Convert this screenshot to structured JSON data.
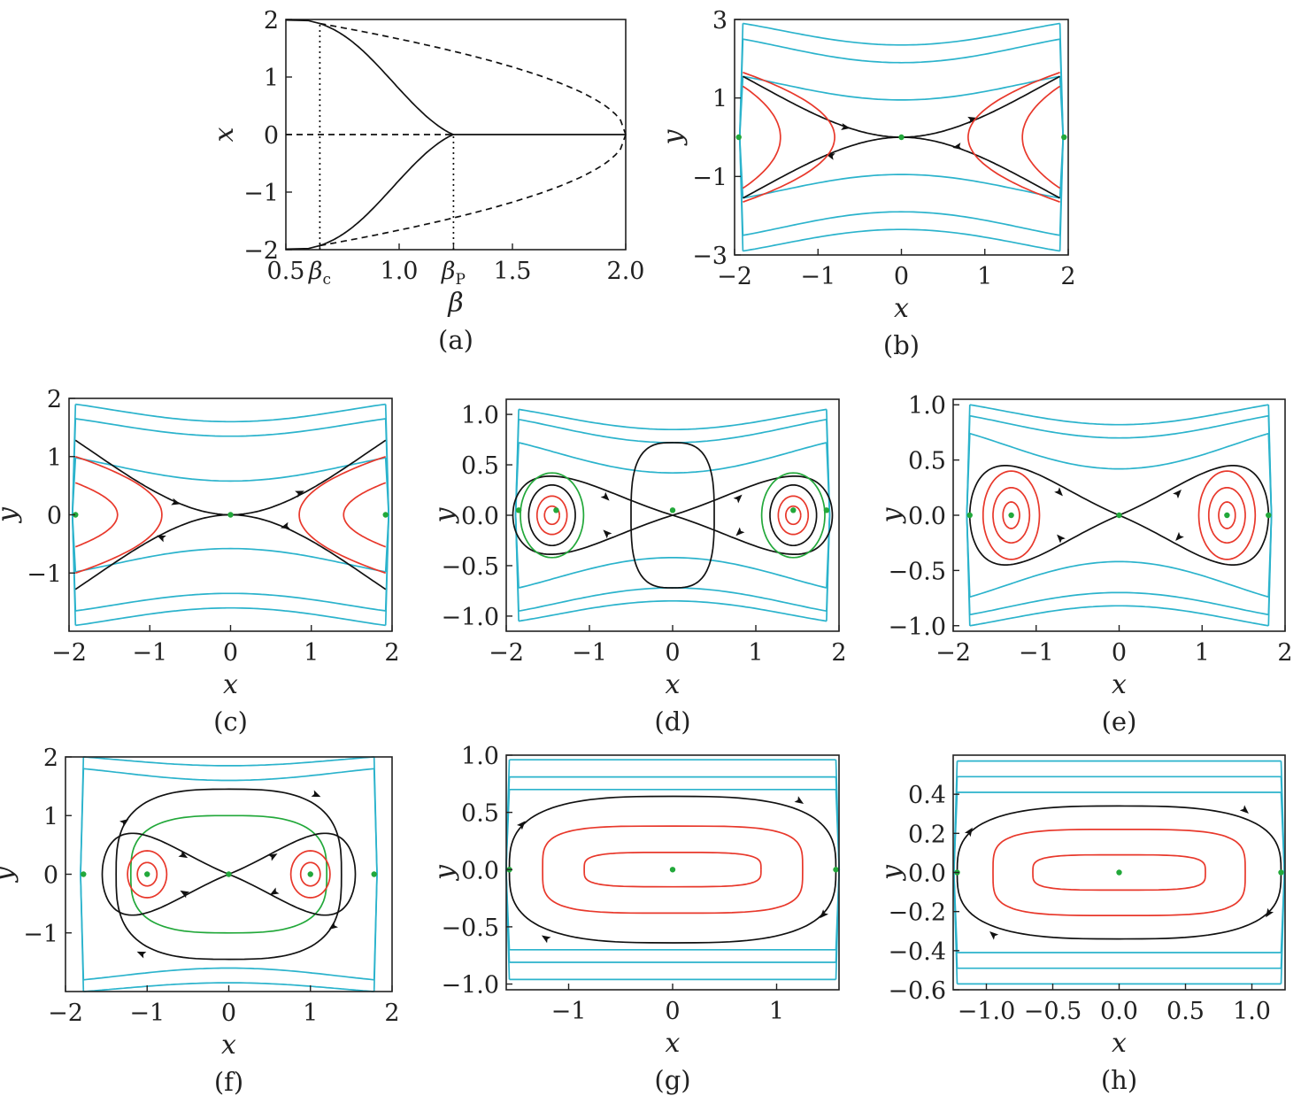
{
  "colors": {
    "separatrix": "#111111",
    "inner_orbit": "#e8382b",
    "outer_orbit": "#2bb3cc",
    "homoclinic": "#22a83a",
    "fixed_point": "#22a83a",
    "axis": "#222222"
  },
  "chart_data": [
    {
      "id": "a",
      "type": "line",
      "caption": "(a)",
      "xlabel": "β",
      "ylabel": "x",
      "xlim": [
        0.5,
        2.0
      ],
      "ylim": [
        -2,
        2
      ],
      "xticks": [
        {
          "v": 0.5,
          "label": "0.5"
        },
        {
          "v": 0.65,
          "label": "βc"
        },
        {
          "v": 1.0,
          "label": "1.0"
        },
        {
          "v": 1.24,
          "label": "βP"
        },
        {
          "v": 1.5,
          "label": "1.5"
        },
        {
          "v": 2.0,
          "label": "2.0"
        }
      ],
      "yticks": [
        {
          "v": 2,
          "label": "2"
        },
        {
          "v": 1,
          "label": "1"
        },
        {
          "v": 0,
          "label": "0"
        },
        {
          "v": -1,
          "label": "−1"
        },
        {
          "v": -2,
          "label": "−2"
        }
      ],
      "beta_c": 0.65,
      "beta_p": 1.24
    },
    {
      "id": "b",
      "type": "line",
      "caption": "(b)",
      "xlabel": "x",
      "ylabel": "y",
      "xlim": [
        -2,
        2
      ],
      "ylim": [
        -3,
        3
      ],
      "w": 1.9,
      "h": 3.0,
      "xticks": [
        {
          "v": -2,
          "label": "−2"
        },
        {
          "v": -1,
          "label": "−1"
        },
        {
          "v": 0,
          "label": "0"
        },
        {
          "v": 1,
          "label": "1"
        },
        {
          "v": 2,
          "label": "2"
        }
      ],
      "yticks": [
        {
          "v": 3,
          "label": "3"
        },
        {
          "v": 1,
          "label": "1"
        },
        {
          "v": -1,
          "label": "−1"
        },
        {
          "v": -3,
          "label": "−3"
        }
      ],
      "curves": [
        {
          "kind": "outer",
          "y0": 0.95,
          "amp": 0.6
        },
        {
          "kind": "outer",
          "y0": 1.9,
          "amp": 0.6
        },
        {
          "kind": "outer",
          "y0": 2.35,
          "amp": 0.55
        },
        {
          "kind": "sep",
          "y0": 0.0,
          "amp": 1.55
        },
        {
          "kind": "cap",
          "xv": 1.45,
          "yh": 1.3,
          "n": 2
        },
        {
          "kind": "cap",
          "xv": 0.8,
          "yh": 1.65,
          "n": 2
        }
      ],
      "points": [
        [
          0,
          0
        ],
        [
          -1.95,
          0
        ],
        [
          1.95,
          0
        ]
      ]
    },
    {
      "id": "c",
      "type": "line",
      "caption": "(c)",
      "xlabel": "x",
      "ylabel": "y",
      "xlim": [
        -2,
        2
      ],
      "ylim": [
        -2,
        2
      ],
      "w": 1.92,
      "h": 2.0,
      "xticks": [
        {
          "v": -2,
          "label": "−2"
        },
        {
          "v": -1,
          "label": "−1"
        },
        {
          "v": 0,
          "label": "0"
        },
        {
          "v": 1,
          "label": "1"
        },
        {
          "v": 2,
          "label": "2"
        }
      ],
      "yticks": [
        {
          "v": 2,
          "label": "2"
        },
        {
          "v": 1,
          "label": "1"
        },
        {
          "v": 0,
          "label": "0"
        },
        {
          "v": -1,
          "label": "−1"
        }
      ],
      "curves": [
        {
          "kind": "outer",
          "y0": 0.58,
          "amp": 0.4
        },
        {
          "kind": "outer",
          "y0": 1.35,
          "amp": 0.3
        },
        {
          "kind": "outer",
          "y0": 1.6,
          "amp": 0.3
        },
        {
          "kind": "sep",
          "y0": 0.0,
          "amp": 1.28
        },
        {
          "kind": "cap",
          "xv": 1.4,
          "yh": 0.55,
          "n": 2
        },
        {
          "kind": "cap",
          "xv": 0.85,
          "yh": 1.0,
          "n": 2
        }
      ],
      "points": [
        [
          0,
          0
        ],
        [
          -1.92,
          0
        ],
        [
          1.92,
          0
        ]
      ]
    },
    {
      "id": "d",
      "type": "line",
      "caption": "(d)",
      "xlabel": "x",
      "ylabel": "y",
      "xlim": [
        -2,
        2
      ],
      "ylim": [
        -1.15,
        1.15
      ],
      "w": 1.85,
      "h": 1.05,
      "xticks": [
        {
          "v": -2,
          "label": "−2"
        },
        {
          "v": -1,
          "label": "−1"
        },
        {
          "v": 0,
          "label": "0"
        },
        {
          "v": 1,
          "label": "1"
        },
        {
          "v": 2,
          "label": "2"
        }
      ],
      "yticks": [
        {
          "v": 1.0,
          "label": "1.0"
        },
        {
          "v": 0.5,
          "label": "0.5"
        },
        {
          "v": 0.0,
          "label": "0.0"
        },
        {
          "v": -0.5,
          "label": "−0.5"
        },
        {
          "v": -1.0,
          "label": "−1.0"
        }
      ],
      "curves": [
        {
          "kind": "outer",
          "y0": 0.42,
          "amp": 0.3
        },
        {
          "kind": "outer",
          "y0": 0.72,
          "amp": 0.23
        },
        {
          "kind": "outer",
          "y0": 0.85,
          "amp": 0.2
        },
        {
          "kind": "lobes",
          "x0": 1.45,
          "rx": 0.47,
          "ry": 0.5,
          "color": "separatrix",
          "arrows": true
        },
        {
          "kind": "rounded",
          "xa": 0.5,
          "ya": 0.72,
          "n": 3,
          "color": "separatrix"
        },
        {
          "kind": "lobe",
          "x0": 1.45,
          "rx": 0.28,
          "ry": 0.3,
          "color": "separatrix"
        },
        {
          "kind": "lobe",
          "x0": 1.45,
          "rx": 0.38,
          "ry": 0.42,
          "color": "homoclinic"
        },
        {
          "kind": "lobe",
          "x0": 1.45,
          "rx": 0.09,
          "ry": 0.09,
          "color": "inner_orbit"
        },
        {
          "kind": "lobe",
          "x0": 1.45,
          "rx": 0.18,
          "ry": 0.19,
          "color": "inner_orbit"
        }
      ],
      "points": [
        [
          0,
          0.05
        ],
        [
          -1.4,
          0.05
        ],
        [
          1.45,
          0.05
        ],
        [
          -1.85,
          0.05
        ],
        [
          1.85,
          0.05
        ]
      ]
    },
    {
      "id": "e",
      "type": "line",
      "caption": "(e)",
      "xlabel": "x",
      "ylabel": "y",
      "xlim": [
        -2,
        2
      ],
      "ylim": [
        -1.05,
        1.05
      ],
      "w": 1.8,
      "h": 1.0,
      "xticks": [
        {
          "v": -2,
          "label": "−2"
        },
        {
          "v": -1,
          "label": "−1"
        },
        {
          "v": 0,
          "label": "0"
        },
        {
          "v": 1,
          "label": "1"
        },
        {
          "v": 2,
          "label": "2"
        }
      ],
      "yticks": [
        {
          "v": 1.0,
          "label": "1.0"
        },
        {
          "v": 0.5,
          "label": "0.5"
        },
        {
          "v": 0.0,
          "label": "0.0"
        },
        {
          "v": -0.5,
          "label": "−0.5"
        },
        {
          "v": -1.0,
          "label": "−1.0"
        }
      ],
      "curves": [
        {
          "kind": "outer",
          "y0": 0.42,
          "amp": 0.32
        },
        {
          "kind": "outer",
          "y0": 0.7,
          "amp": 0.2
        },
        {
          "kind": "outer",
          "y0": 0.82,
          "amp": 0.18
        },
        {
          "kind": "lobes",
          "x0": 1.3,
          "rx": 0.5,
          "ry": 0.58,
          "color": "separatrix",
          "arrows": true
        },
        {
          "kind": "lobe",
          "x0": 1.3,
          "rx": 0.1,
          "ry": 0.12,
          "color": "inner_orbit"
        },
        {
          "kind": "lobe",
          "x0": 1.3,
          "rx": 0.22,
          "ry": 0.25,
          "color": "inner_orbit"
        },
        {
          "kind": "lobe",
          "x0": 1.3,
          "rx": 0.34,
          "ry": 0.4,
          "color": "inner_orbit"
        }
      ],
      "points": [
        [
          0,
          0
        ],
        [
          -1.3,
          0
        ],
        [
          1.3,
          0
        ],
        [
          -1.8,
          0
        ],
        [
          1.8,
          0
        ]
      ]
    },
    {
      "id": "f",
      "type": "line",
      "caption": "(f)",
      "xlabel": "x",
      "ylabel": "y",
      "xlim": [
        -2,
        2
      ],
      "ylim": [
        -2,
        2
      ],
      "w": 1.78,
      "h": 1.9,
      "xticks": [
        {
          "v": -2,
          "label": "−2"
        },
        {
          "v": -1,
          "label": "−1"
        },
        {
          "v": 0,
          "label": "0"
        },
        {
          "v": 1,
          "label": "1"
        },
        {
          "v": 2,
          "label": "2"
        }
      ],
      "yticks": [
        {
          "v": 2,
          "label": "2"
        },
        {
          "v": 1,
          "label": "1"
        },
        {
          "v": 0,
          "label": "0"
        },
        {
          "v": -1,
          "label": "−1"
        }
      ],
      "curves": [
        {
          "kind": "outer",
          "y0": 1.6,
          "amp": 0.2
        },
        {
          "kind": "outer",
          "y0": 1.85,
          "amp": 0.15
        },
        {
          "kind": "rounded",
          "xa": 1.38,
          "ya": 1.45,
          "n": 3,
          "color": "separatrix",
          "arrows": true
        },
        {
          "kind": "rounded",
          "xa": 1.2,
          "ya": 1.0,
          "n": 3,
          "color": "homoclinic"
        },
        {
          "kind": "lobes",
          "x0": 1.0,
          "rx": 0.55,
          "ry": 0.9,
          "color": "separatrix",
          "arrows": true
        },
        {
          "kind": "lobe",
          "x0": 1.0,
          "rx": 0.12,
          "ry": 0.2,
          "color": "inner_orbit"
        },
        {
          "kind": "lobe",
          "x0": 1.0,
          "rx": 0.24,
          "ry": 0.4,
          "color": "inner_orbit"
        }
      ],
      "points": [
        [
          0,
          0
        ],
        [
          -1.0,
          0
        ],
        [
          1.0,
          0
        ],
        [
          -1.78,
          0
        ],
        [
          1.78,
          0
        ]
      ]
    },
    {
      "id": "g",
      "type": "line",
      "caption": "(g)",
      "xlabel": "x",
      "ylabel": "y",
      "xlim": [
        -1.6,
        1.6
      ],
      "ylim": [
        -1.05,
        1.0
      ],
      "w": 1.57,
      "h": 0.96,
      "xticks": [
        {
          "v": -1,
          "label": "−1"
        },
        {
          "v": 0,
          "label": "0"
        },
        {
          "v": 1,
          "label": "1"
        }
      ],
      "yticks": [
        {
          "v": 1.0,
          "label": "1.0"
        },
        {
          "v": 0.5,
          "label": "0.5"
        },
        {
          "v": 0.0,
          "label": "0.0"
        },
        {
          "v": -0.5,
          "label": "−0.5"
        },
        {
          "v": -1.0,
          "label": "−1.0"
        }
      ],
      "curves": [
        {
          "kind": "outer",
          "y0": 0.7,
          "amp": 0.0
        },
        {
          "kind": "outer",
          "y0": 0.81,
          "amp": 0.0
        },
        {
          "kind": "outer",
          "y0": 0.96,
          "amp": 0.0
        },
        {
          "kind": "rounded",
          "xa": 1.57,
          "ya": 0.64,
          "n": 3,
          "color": "separatrix",
          "arrows": true
        },
        {
          "kind": "rounded",
          "xa": 1.25,
          "ya": 0.38,
          "n": 4,
          "color": "inner_orbit"
        },
        {
          "kind": "rounded",
          "xa": 0.85,
          "ya": 0.15,
          "n": 4,
          "color": "inner_orbit"
        }
      ],
      "points": [
        [
          0,
          0
        ],
        [
          -1.57,
          0
        ],
        [
          1.57,
          0
        ]
      ]
    },
    {
      "id": "h",
      "type": "line",
      "caption": "(h)",
      "xlabel": "x",
      "ylabel": "y",
      "xlim": [
        -1.25,
        1.25
      ],
      "ylim": [
        -0.6,
        0.6
      ],
      "w": 1.22,
      "h": 0.57,
      "xticks": [
        {
          "v": -1.0,
          "label": "−1.0"
        },
        {
          "v": -0.5,
          "label": "−0.5"
        },
        {
          "v": 0.0,
          "label": "0.0"
        },
        {
          "v": 0.5,
          "label": "0.5"
        },
        {
          "v": 1.0,
          "label": "1.0"
        }
      ],
      "yticks": [
        {
          "v": 0.4,
          "label": "0.4"
        },
        {
          "v": 0.2,
          "label": "0.2"
        },
        {
          "v": 0.0,
          "label": "0.0"
        },
        {
          "v": -0.2,
          "label": "−0.2"
        },
        {
          "v": -0.4,
          "label": "−0.4"
        },
        {
          "v": -0.6,
          "label": "−0.6"
        }
      ],
      "curves": [
        {
          "kind": "outer",
          "y0": 0.41,
          "amp": 0.0
        },
        {
          "kind": "outer",
          "y0": 0.49,
          "amp": 0.0
        },
        {
          "kind": "outer",
          "y0": 0.57,
          "amp": 0.0
        },
        {
          "kind": "rounded",
          "xa": 1.22,
          "ya": 0.34,
          "n": 3,
          "color": "separatrix",
          "arrows": true
        },
        {
          "kind": "rounded",
          "xa": 0.95,
          "ya": 0.22,
          "n": 4,
          "color": "inner_orbit"
        },
        {
          "kind": "rounded",
          "xa": 0.65,
          "ya": 0.09,
          "n": 4,
          "color": "inner_orbit"
        }
      ],
      "points": [
        [
          0,
          0
        ],
        [
          -1.22,
          0
        ],
        [
          1.22,
          0
        ]
      ]
    }
  ]
}
